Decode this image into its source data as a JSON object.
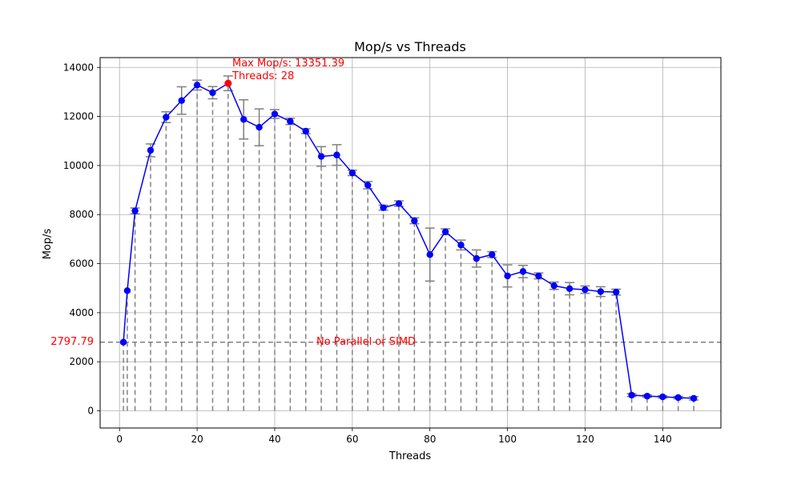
{
  "chart_data": {
    "type": "line",
    "title": "Mop/s vs Threads",
    "xlabel": "Threads",
    "ylabel": "Mop/s",
    "xlim": [
      -5,
      155
    ],
    "ylim": [
      -700,
      14400
    ],
    "xticks": [
      0,
      20,
      40,
      60,
      80,
      100,
      120,
      140
    ],
    "yticks": [
      0,
      2000,
      4000,
      6000,
      8000,
      10000,
      12000,
      14000
    ],
    "grid": true,
    "colors": {
      "line": "#0000ff",
      "marker": "#0000ff",
      "max_marker": "#ff0000",
      "errorbar": "#808080",
      "dropline": "#808080",
      "baseline": "#808080",
      "annotation": "#ff0000",
      "grid": "#b0b0b0"
    },
    "series": [
      {
        "x": [
          1,
          2,
          4,
          8,
          12,
          16,
          20,
          24,
          28,
          32,
          36,
          40,
          44,
          48,
          52,
          56,
          60,
          64,
          68,
          72,
          76,
          80,
          84,
          88,
          92,
          96,
          100,
          104,
          108,
          112,
          116,
          120,
          124,
          128,
          132,
          136,
          140,
          144,
          148
        ],
        "values": [
          2797.79,
          4900,
          8150,
          10620,
          11970,
          12650,
          13280,
          12970,
          13351.39,
          11880,
          11560,
          12100,
          11800,
          11400,
          10370,
          10430,
          9700,
          9200,
          8280,
          8450,
          7750,
          6370,
          7300,
          6760,
          6210,
          6370,
          5500,
          5680,
          5500,
          5100,
          4980,
          4940,
          4860,
          4840,
          640,
          600,
          570,
          540,
          510
        ],
        "errors": [
          0,
          0,
          120,
          260,
          220,
          560,
          200,
          250,
          300,
          800,
          750,
          180,
          130,
          100,
          400,
          420,
          110,
          150,
          100,
          110,
          120,
          1080,
          120,
          200,
          350,
          120,
          450,
          250,
          120,
          150,
          250,
          150,
          200,
          120,
          60,
          50,
          50,
          50,
          70
        ]
      }
    ],
    "max_point": {
      "x": 28,
      "y": 13351.39,
      "label_line1": "Max Mop/s: 13351.39",
      "label_line2": "Threads: 28"
    },
    "baseline": {
      "value": 2797.79,
      "value_label": "2797.79",
      "text": "No Parallel or SIMD"
    }
  }
}
